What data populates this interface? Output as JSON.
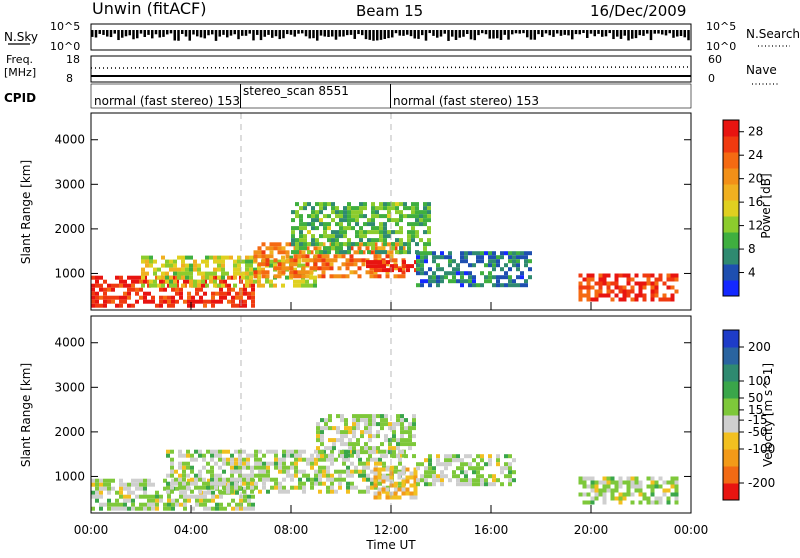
{
  "header": {
    "station": "Unwin (fitACF)",
    "beam": "Beam 15",
    "date": "16/Dec/2009"
  },
  "top_panel": {
    "left_label": "N.Sky",
    "left_ticks": [
      "10^5",
      "10^0"
    ],
    "right_label": "N.Search",
    "right_ticks": [
      "10^5",
      "10^0"
    ]
  },
  "freq_panel": {
    "left_label_1": "Freq.",
    "left_label_2": "[MHz]",
    "left_ticks": [
      "18",
      "8"
    ],
    "right_label": "Nave",
    "right_ticks": [
      "60",
      "0"
    ]
  },
  "cpid_panel": {
    "label": "CPID",
    "segments": [
      {
        "start_h": 0,
        "end_h": 6,
        "text": "normal (fast stereo) 153"
      },
      {
        "start_h": 6,
        "end_h": 12,
        "text": "stereo_scan 8551"
      },
      {
        "start_h": 12,
        "end_h": 24,
        "text": "normal (fast stereo) 153"
      }
    ]
  },
  "chart_data": [
    {
      "type": "heatmap",
      "ylabel": "Slant Range [km]",
      "ylim": [
        180,
        4600
      ],
      "xlim_hours": [
        0,
        24
      ],
      "y_ticks": [
        1000,
        2000,
        3000,
        4000
      ],
      "colorbar_label": "Power [dB]",
      "colorbar_ticks": [
        4,
        8,
        12,
        16,
        20,
        24,
        28
      ],
      "colorbar_range": [
        0,
        30
      ],
      "colorbar_colors": [
        "#1428ff",
        "#1e4fb0",
        "#2f8a70",
        "#3faf3f",
        "#8ccc2d",
        "#e0d020",
        "#f0b020",
        "#f29018",
        "#f56a12",
        "#f03a10",
        "#e81410"
      ],
      "series": [
        {
          "start_h": 0.0,
          "end_h": 6.5,
          "low_km": 300,
          "high_km": 950,
          "value_db": 27
        },
        {
          "start_h": 2.0,
          "end_h": 9.0,
          "low_km": 700,
          "high_km": 1400,
          "value_db": 14
        },
        {
          "start_h": 6.5,
          "end_h": 12.5,
          "low_km": 900,
          "high_km": 1700,
          "value_db": 22
        },
        {
          "start_h": 8.0,
          "end_h": 13.5,
          "low_km": 1500,
          "high_km": 2600,
          "value_db": 10
        },
        {
          "start_h": 11.0,
          "end_h": 13.0,
          "low_km": 1050,
          "high_km": 1300,
          "value_db": 28
        },
        {
          "start_h": 13.0,
          "end_h": 17.5,
          "low_km": 700,
          "high_km": 1500,
          "value_db": 6
        },
        {
          "start_h": 19.5,
          "end_h": 23.5,
          "low_km": 400,
          "high_km": 1000,
          "value_db": 26
        }
      ]
    },
    {
      "type": "heatmap",
      "ylabel": "Slant Range [km]",
      "ylim": [
        180,
        4600
      ],
      "xlim_hours": [
        0,
        24
      ],
      "y_ticks": [
        1000,
        2000,
        3000,
        4000
      ],
      "x_ticks": [
        "00:00",
        "04:00",
        "08:00",
        "12:00",
        "16:00",
        "20:00",
        "00:00"
      ],
      "xlabel": "Time UT",
      "colorbar_label": "Velocity [m s^-1]",
      "colorbar_ticks": [
        200,
        100,
        50,
        15,
        -15,
        -50,
        -100,
        -200
      ],
      "colorbar_range": [
        -250,
        250
      ],
      "colorbar_colors": [
        "#1e3cc8",
        "#2a64a0",
        "#2f8a70",
        "#3aa64a",
        "#7ec83a",
        "#cfcfcf",
        "#f2c020",
        "#f39a18",
        "#f26a14",
        "#e81410"
      ],
      "series": [
        {
          "start_h": 0.0,
          "end_h": 6.5,
          "low_km": 300,
          "high_km": 950,
          "value_ms": 0
        },
        {
          "start_h": 3.0,
          "end_h": 12.5,
          "low_km": 700,
          "high_km": 1600,
          "value_ms": 0
        },
        {
          "start_h": 9.0,
          "end_h": 13.0,
          "low_km": 1500,
          "high_km": 2400,
          "value_ms": 0
        },
        {
          "start_h": 11.3,
          "end_h": 13.0,
          "low_km": 500,
          "high_km": 1200,
          "value_ms": -70
        },
        {
          "start_h": 13.0,
          "end_h": 17.0,
          "low_km": 800,
          "high_km": 1500,
          "value_ms": 0
        },
        {
          "start_h": 19.5,
          "end_h": 23.5,
          "low_km": 400,
          "high_km": 1000,
          "value_ms": 0
        }
      ]
    }
  ]
}
